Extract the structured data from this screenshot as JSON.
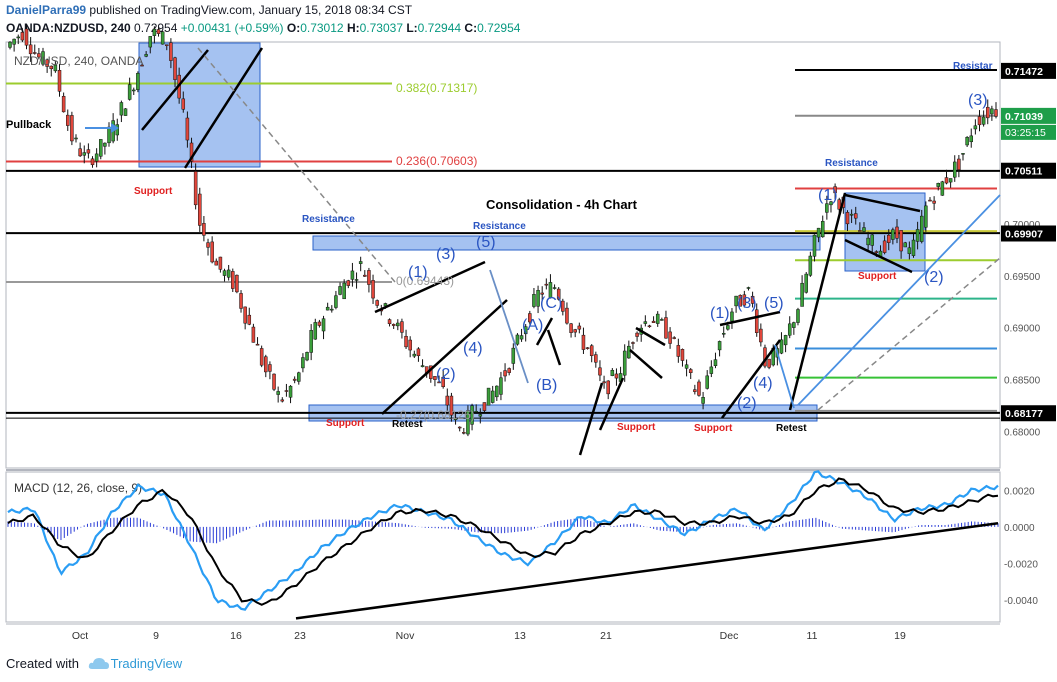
{
  "header": {
    "username": "DanielParra99",
    "published_text": "published on TradingView.com, January 15, 2018 08:34 CST",
    "symbol_line": "OANDA:NZDUSD, 240",
    "last": "0.72954",
    "change": "+0.00431 (+0.59%)",
    "open_label": "O:",
    "open": "0.73012",
    "high_label": "H:",
    "high": "0.73037",
    "low_label": "L:",
    "low": "0.72944",
    "close_label": "C:",
    "close": "0.72954"
  },
  "footer": {
    "created_with": "Created with",
    "brand": "TradingView"
  },
  "colors": {
    "up": "#3a9e3a",
    "down": "#e0463b",
    "zone_fill": "#5b8fe6",
    "zone_stroke": "#2a62c9",
    "fib_green": "#9ccc2e",
    "fib_red": "#e04040",
    "label_blue": "#2a55c2",
    "support_red": "#e02020",
    "macd_blue": "#2a9df4",
    "signal_black": "#000000"
  },
  "chart_data": [
    {
      "type": "candlestick",
      "title": "NZD/USD, 240, OANDA",
      "subtitle": "Consolidation - 4h Chart",
      "ylim": [
        0.6765,
        0.7175
      ],
      "price_ticks": [
        0.68,
        0.685,
        0.69,
        0.695,
        0.7
      ],
      "price_tick_labels": [
        "0.68000",
        "0.68500",
        "0.69000",
        "0.69500",
        "0.70000"
      ],
      "highlighted_prices": [
        {
          "value": 0.71472,
          "label": "0.71472",
          "style": "dark"
        },
        {
          "value": 0.71039,
          "label": "0.71039",
          "style": "green"
        },
        {
          "value": 0.70511,
          "label": "0.70511",
          "style": "dark"
        },
        {
          "value": 0.69907,
          "label": "0.69907",
          "style": "dark"
        },
        {
          "value": 0.68177,
          "label": "0.68177",
          "style": "dark"
        }
      ],
      "countdown": "03:25:15",
      "x_tick_labels": [
        "Oct",
        "9",
        "16",
        "23",
        "Nov",
        "13",
        "21",
        "Dec",
        "11",
        "19"
      ],
      "price_path": [
        [
          0.717,
          0.7185
        ],
        [
          0.716,
          0.715
        ],
        [
          0.7085,
          0.706
        ],
        [
          0.7075,
          0.7105
        ],
        [
          0.714,
          0.7185
        ],
        [
          0.7175,
          0.71
        ],
        [
          0.7,
          0.696
        ],
        [
          0.6945,
          0.6905
        ],
        [
          0.686,
          0.683
        ],
        [
          0.685,
          0.6895
        ],
        [
          0.692,
          0.6945
        ],
        [
          0.696,
          0.6925
        ],
        [
          0.6905,
          0.688
        ],
        [
          0.686,
          0.684
        ],
        [
          0.68,
          0.682
        ],
        [
          0.6835,
          0.686
        ],
        [
          0.69,
          0.6935
        ],
        [
          0.694,
          0.69
        ],
        [
          0.688,
          0.684
        ],
        [
          0.686,
          0.69
        ],
        [
          0.691,
          0.6895
        ],
        [
          0.686,
          0.683
        ],
        [
          0.688,
          0.692
        ],
        [
          0.6935,
          0.6865
        ],
        [
          0.688,
          0.692
        ],
        [
          0.698,
          0.703
        ],
        [
          0.701,
          0.699
        ],
        [
          0.6975,
          0.699
        ],
        [
          0.697,
          0.702
        ],
        [
          0.704,
          0.706
        ],
        [
          0.71,
          0.711
        ]
      ],
      "levels": [
        {
          "value": 0.7148,
          "role": "resistance"
        },
        {
          "value": 0.7135,
          "role": "fib"
        },
        {
          "value": 0.7104,
          "role": "fib"
        },
        {
          "value": 0.706,
          "role": "fib"
        },
        {
          "value": 0.7051,
          "role": "resistance"
        },
        {
          "value": 0.7034,
          "role": "fib"
        },
        {
          "value": 0.6991,
          "role": "resistance"
        },
        {
          "value": 0.6944,
          "role": "fib"
        },
        {
          "value": 0.6818,
          "role": "support"
        }
      ],
      "fib_labels": [
        {
          "text": "0.382(0.71317)",
          "color": "green"
        },
        {
          "text": "0.236(0.70603)",
          "color": "red"
        },
        {
          "text": "0(0.69443)",
          "color": "grey"
        },
        {
          "text": "-0.27(0.68126)",
          "color": "grey"
        }
      ],
      "annotations": {
        "pullback": "Pullback",
        "support": "Support",
        "resistance": "Resistance",
        "retest": "Retest",
        "resistance_cut": "Resistar",
        "waves": [
          "(1)",
          "(2)",
          "(3)",
          "(4)",
          "(5)",
          "(A)",
          "(B)",
          "(C)"
        ]
      }
    },
    {
      "type": "line",
      "title": "MACD (12, 26, close, 9)",
      "ylim": [
        -0.0052,
        0.003
      ],
      "y_ticks": [
        0.002,
        0.0,
        -0.002,
        -0.004
      ],
      "y_tick_labels": [
        "0.0020",
        "0.0000",
        "-0.0020",
        "-0.0040"
      ],
      "series": [
        {
          "values": [
            0.0008,
            0.001,
            -0.0025,
            -0.0015,
            0.0008,
            0.0022,
            0.0018,
            -0.001,
            -0.004,
            -0.0045,
            -0.0035,
            -0.0025,
            -0.0012,
            -0.0002,
            0.0006,
            0.0012,
            0.0008,
            0.0004,
            -0.0006,
            -0.0015,
            -0.002,
            -0.0008,
            0.0006,
            0.0002,
            0.0012,
            0.0004,
            -0.0004,
            0.0004,
            0.001,
            -0.0002,
            0.0012,
            0.003,
            0.0024,
            0.0016,
            0.0004,
            0.001,
            0.0012,
            0.002,
            0.0022
          ]
        },
        {
          "values": [
            0.0002,
            0.0006,
            -0.001,
            -0.0018,
            -0.0002,
            0.0012,
            0.002,
            0.0006,
            -0.0022,
            -0.004,
            -0.0042,
            -0.0032,
            -0.002,
            -0.001,
            0.0,
            0.0008,
            0.0009,
            0.0006,
            0.0,
            -0.0008,
            -0.0016,
            -0.0014,
            -0.0004,
            0.0002,
            0.0008,
            0.0008,
            0.0002,
            0.0002,
            0.0006,
            0.0002,
            0.0006,
            0.002,
            0.0026,
            0.002,
            0.001,
            0.0008,
            0.001,
            0.0014,
            0.0018
          ]
        }
      ],
      "trendline": [
        [
          -0.005
        ],
        [
          0.0002
        ]
      ]
    }
  ]
}
